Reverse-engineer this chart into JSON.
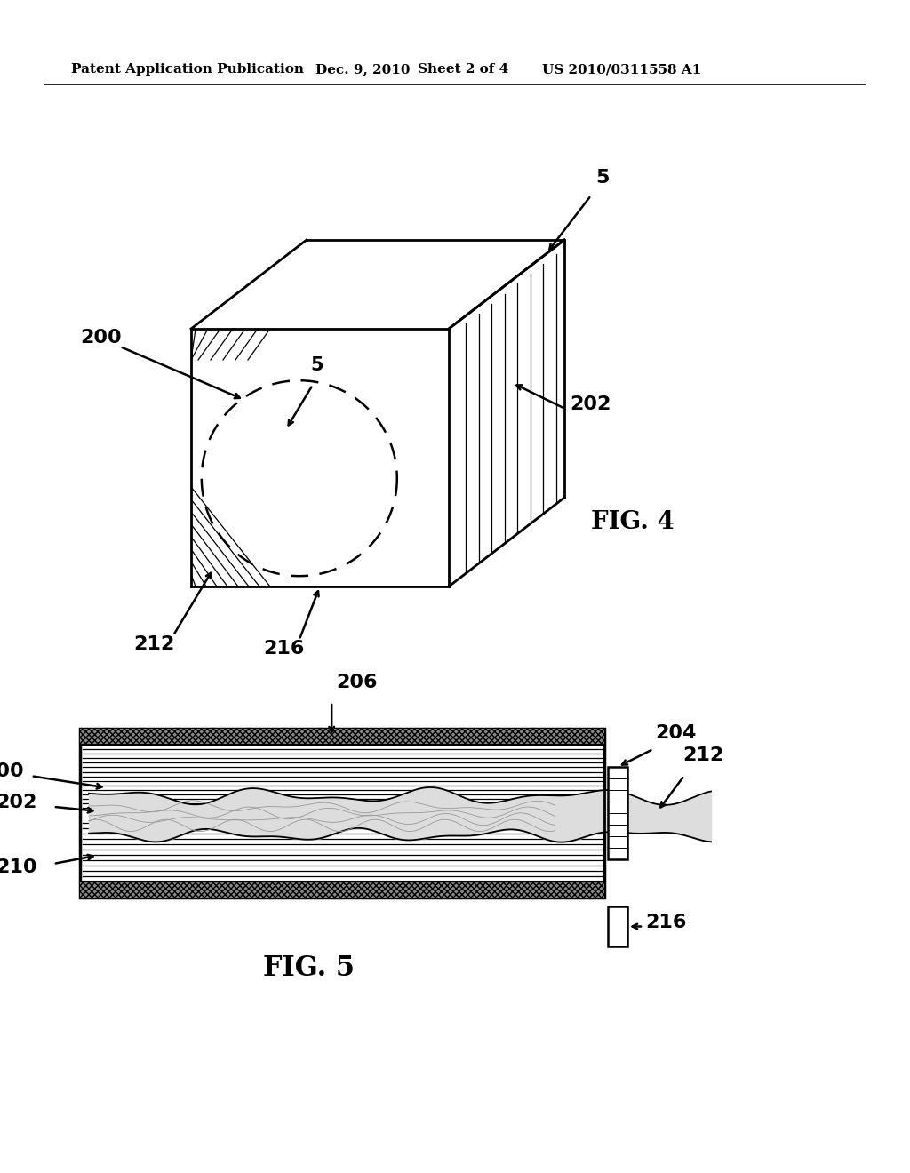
{
  "bg_color": "#ffffff",
  "header_text": "Patent Application Publication",
  "header_date": "Dec. 9, 2010",
  "header_sheet": "Sheet 2 of 4",
  "header_patent": "US 2010/0311558 A1",
  "fig4_label": "FIG. 4",
  "fig5_label": "FIG. 5"
}
